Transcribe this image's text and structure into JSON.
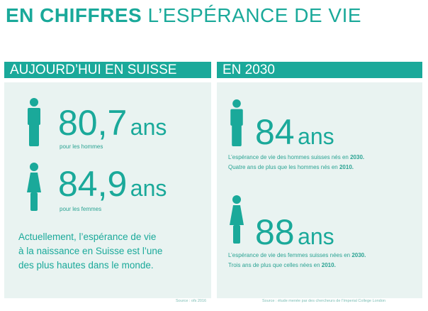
{
  "title": {
    "bold": "EN CHIFFRES",
    "light": "L’ESPÉRANCE DE VIE"
  },
  "left": {
    "header": "AUJOURD’HUI EN SUISSE",
    "men": {
      "value": "80,7",
      "unit": "ans",
      "label": "pour les hommes"
    },
    "women": {
      "value": "84,9",
      "unit": "ans",
      "label": "pour les femmes"
    },
    "description": [
      "Actuellement, l’espérance de vie",
      "à la naissance en Suisse est l’une",
      "des plus hautes dans le monde."
    ],
    "source": "Source : ofs 2016"
  },
  "right": {
    "header": "EN 2030",
    "men": {
      "value": "84",
      "unit": "ans",
      "line1_pre": "L’espérance de vie des hommes suisses nés en ",
      "line1_year": "2030.",
      "line2_pre": "Quatre ans de plus que les hommes nés en ",
      "line2_year": "2010."
    },
    "women": {
      "value": "88",
      "unit": "ans",
      "line1_pre": "L’espérance de vie des femmes suisses nées en ",
      "line1_year": "2030.",
      "line2_pre": "Trois ans de plus que celles nées en ",
      "line2_year": "2010."
    },
    "source": "Source : étude menée par des chercheurs de l’Imperial College London"
  },
  "colors": {
    "teal": "#1aa99a",
    "panel": "#e9f3f1"
  },
  "icons": [
    "male-person-icon",
    "female-person-icon"
  ]
}
